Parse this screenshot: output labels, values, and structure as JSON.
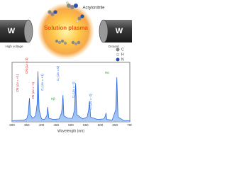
{
  "diagram": {
    "left_electrode": "W",
    "right_electrode": "W",
    "left_label": "High voltage",
    "right_label": "Ground",
    "center_label": "Solution plasma",
    "molecule_label": "Acrylonitrile",
    "legend": [
      "C",
      "H",
      "N"
    ]
  },
  "chart_data": {
    "type": "line",
    "x_label": "Wavelength (nm)",
    "color": "#1f5fd6",
    "x": [
      300,
      340,
      350,
      355,
      359,
      362,
      370,
      380,
      385,
      388,
      392,
      400,
      410,
      418,
      421,
      425,
      440,
      460,
      468,
      471,
      473,
      476,
      490,
      505,
      512,
      516,
      520,
      540,
      555,
      560,
      563,
      567,
      590,
      612,
      617,
      619,
      622,
      640,
      652,
      656,
      660,
      680,
      700
    ],
    "values": [
      2,
      3,
      5,
      15,
      40,
      12,
      6,
      10,
      30,
      85,
      20,
      5,
      4,
      10,
      25,
      6,
      4,
      5,
      15,
      30,
      45,
      10,
      6,
      6,
      20,
      65,
      12,
      5,
      8,
      20,
      35,
      8,
      4,
      5,
      10,
      15,
      4,
      3,
      20,
      75,
      8,
      2,
      2
    ],
    "xlim": [
      300,
      700
    ],
    "xticks": [
      300,
      350,
      400,
      450,
      500,
      550,
      600,
      650,
      700
    ],
    "ylim": [
      0,
      100
    ],
    "annotations": [
      "CN (Δv = 0)",
      "CN (Δv = +1)",
      "CN (Δv = -1)",
      "C₂ (Δv = +1)",
      "Hβ",
      "C₂ (Δv = 0)",
      "C₂ (Δv = -1)",
      "C₂ (Δv = -2)",
      "Hα"
    ]
  }
}
